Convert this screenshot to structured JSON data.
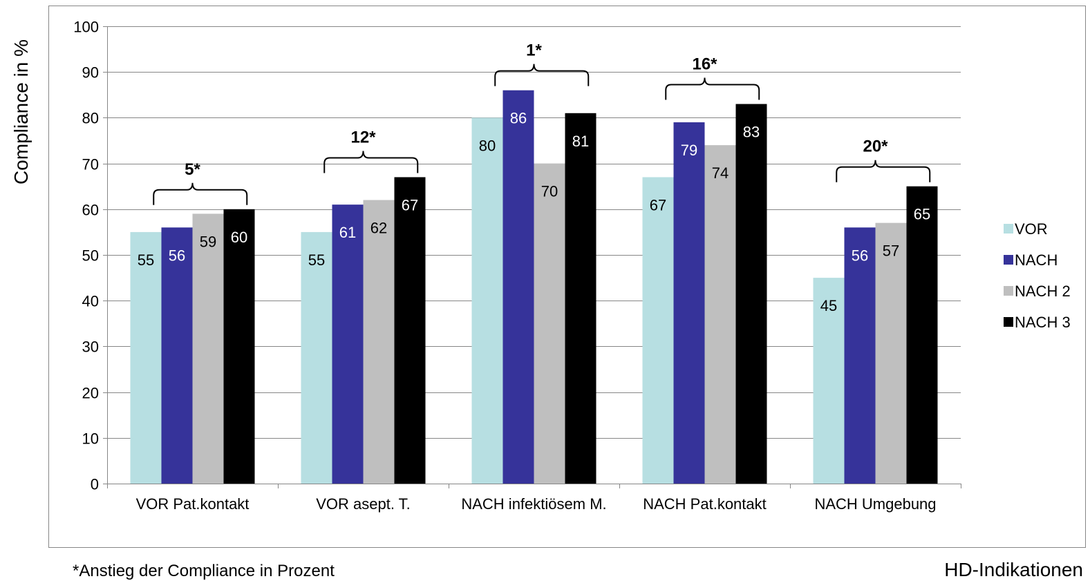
{
  "chart_data": {
    "type": "bar",
    "title": "",
    "ylabel": "Compliance in %",
    "xlabel": "HD-Indikationen",
    "ylim": [
      0,
      100
    ],
    "yticks": [
      0,
      10,
      20,
      30,
      40,
      50,
      60,
      70,
      80,
      90,
      100
    ],
    "grid": true,
    "legend_position": "right",
    "categories": [
      "VOR Pat.kontakt",
      "VOR asept. T.",
      "NACH infektiösem M.",
      "NACH Pat.kontakt",
      "NACH Umgebung"
    ],
    "series": [
      {
        "name": "VOR",
        "color": "#b7dfe2",
        "label_color": "#000000",
        "values": [
          55,
          55,
          80,
          67,
          45
        ]
      },
      {
        "name": "NACH",
        "color": "#36339a",
        "label_color": "#ffffff",
        "values": [
          56,
          61,
          86,
          79,
          56
        ]
      },
      {
        "name": "NACH 2",
        "color": "#bfbfbf",
        "label_color": "#000000",
        "values": [
          59,
          62,
          70,
          74,
          57
        ]
      },
      {
        "name": "NACH 3",
        "color": "#000000",
        "label_color": "#ffffff",
        "values": [
          60,
          67,
          81,
          83,
          65
        ]
      }
    ],
    "annotations": [
      "5*",
      "12*",
      "1*",
      "16*",
      "20*"
    ],
    "footnote": "*Anstieg der Compliance in Prozent"
  }
}
